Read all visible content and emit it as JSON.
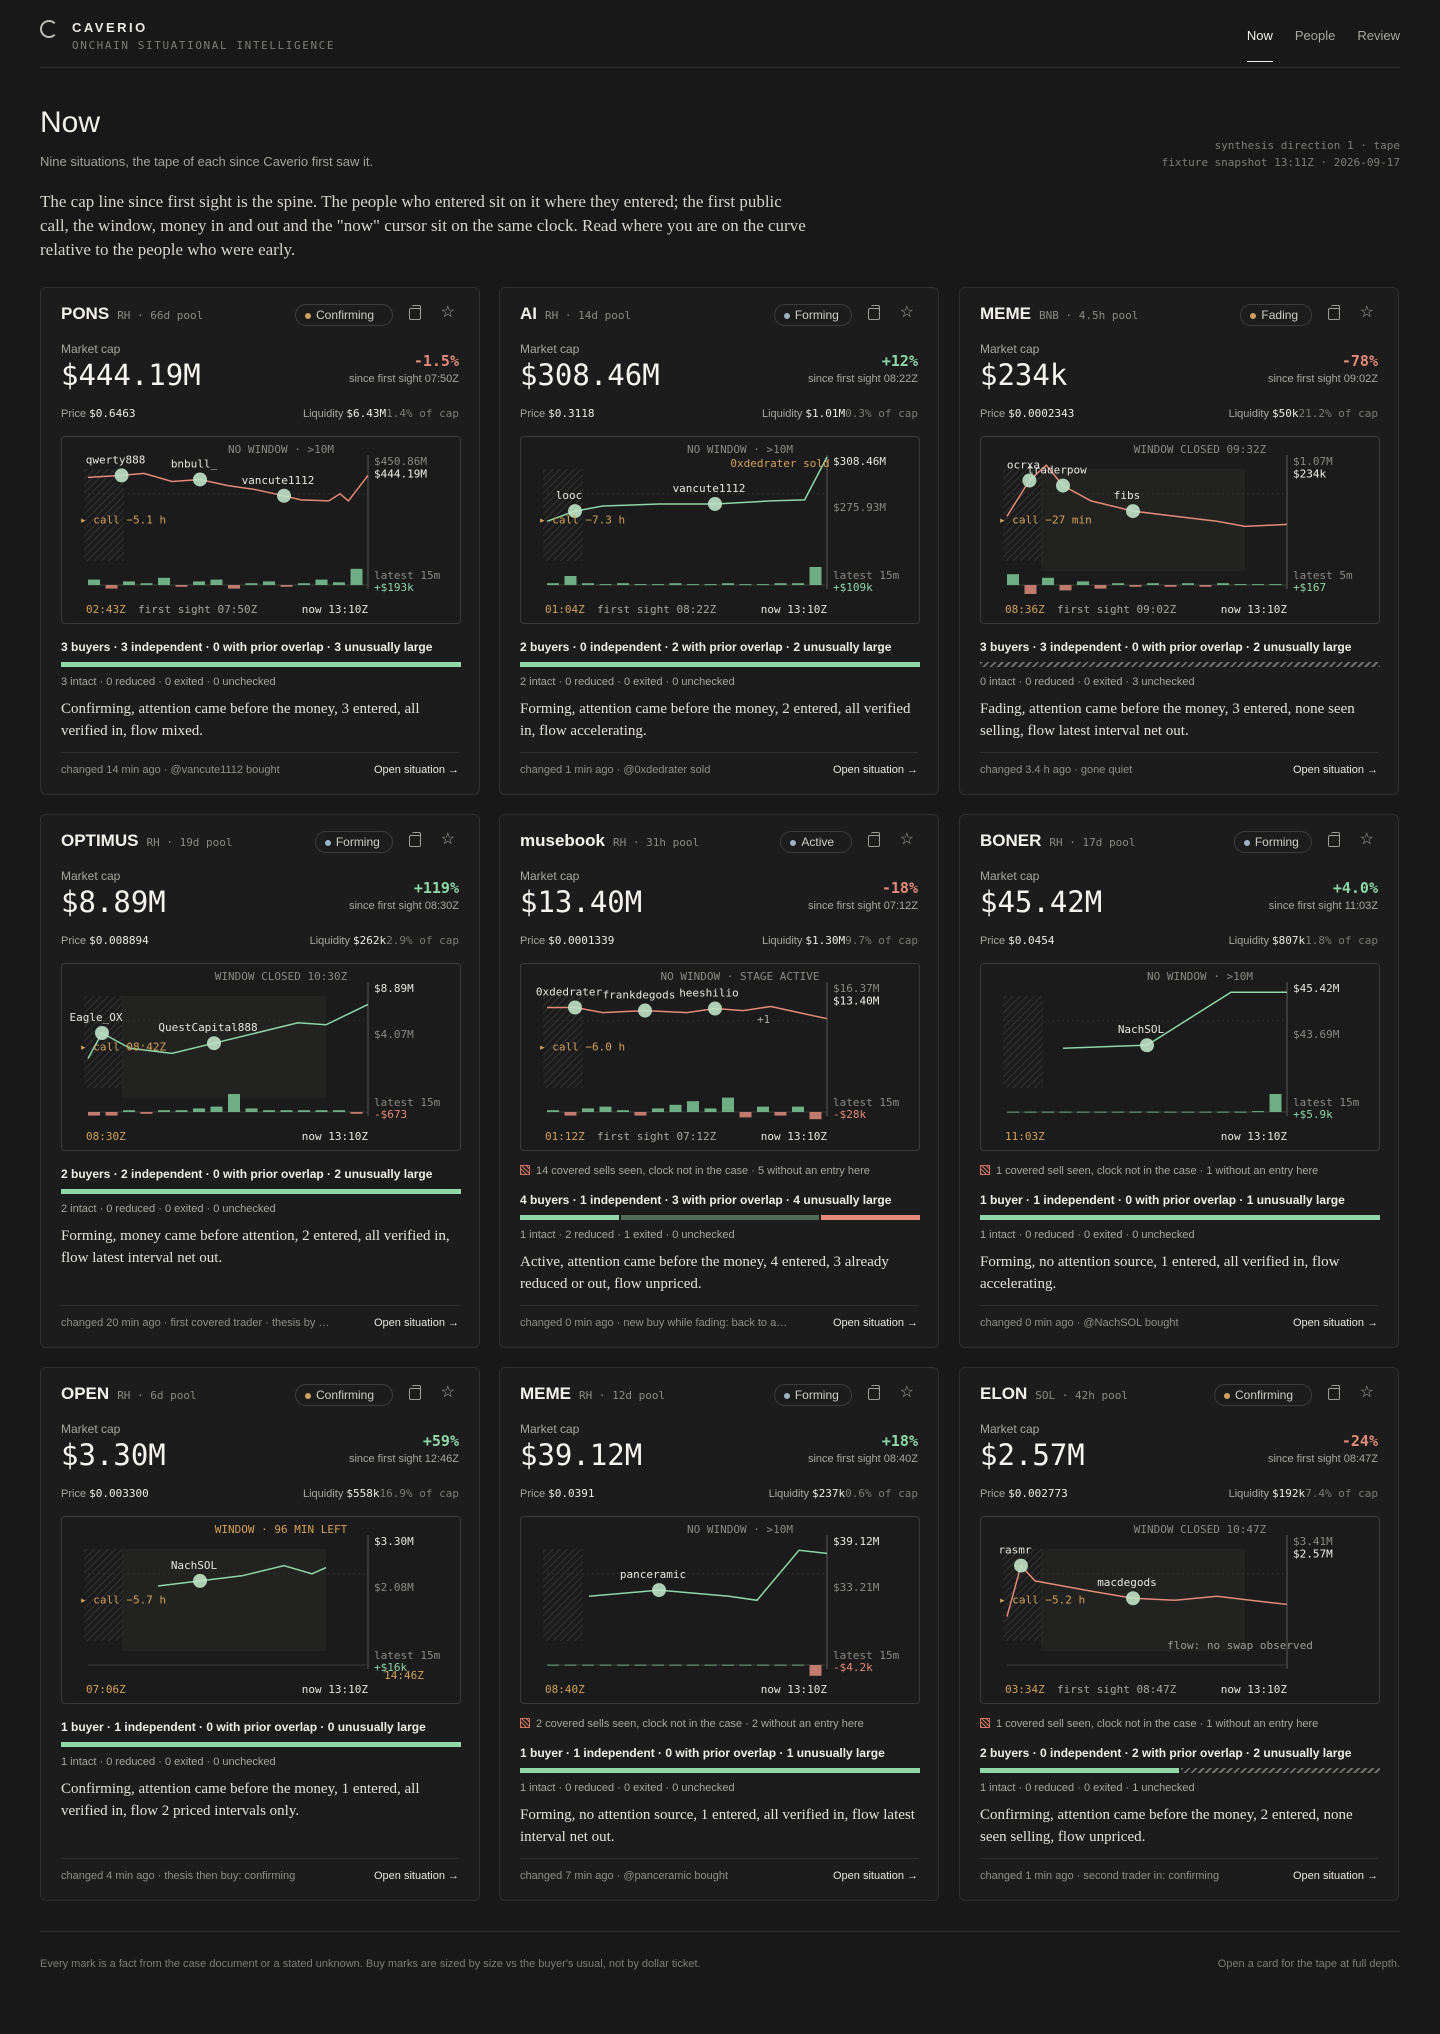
{
  "brand": {
    "name": "CAVERIO",
    "tagline": "ONCHAIN SITUATIONAL INTELLIGENCE"
  },
  "nav": [
    "Now",
    "People",
    "Review"
  ],
  "header": {
    "title": "Now",
    "subtitle": "Nine situations, the tape of each since Caverio first saw it.",
    "synthesis": "synthesis direction 1 · tape",
    "snapshot": "fixture snapshot 13:11Z · 2026-09-17",
    "intro": "The cap line since first sight is the spine. The people who entered sit on it where they entered; the first public call, the window, money in and out and the \"now\" cursor sit on the same clock. Read where you are on the curve relative to the people who were early."
  },
  "labels": {
    "market_cap": "Market cap",
    "price": "Price",
    "liquidity": "Liquidity",
    "open": "Open situation →"
  },
  "colors": {
    "green": "#8fd6a8",
    "red": "#e48a7a",
    "amber": "#d2a15b",
    "accent": "#bfe3c6"
  },
  "cards": [
    {
      "ticker": "PONS",
      "chain": "RH · 66d pool",
      "status": "Confirming",
      "status_color": "#d2a15b",
      "mcap": "$444.19M",
      "change": "-1.5%",
      "dir": "down",
      "since": "since first sight 07:50Z",
      "price": "$0.6463",
      "liquidity": "$6.43M",
      "liq_pct": "1.4% of cap",
      "window_label": "NO WINDOW · >10M",
      "window_label2": "",
      "start": "02:43Z",
      "first_sight": "first sight 07:50Z",
      "now": "now 13:10Z",
      "cap_high": "$450.86M",
      "cap_now": "$444.19M",
      "cap_low": "",
      "latest": "latest 15m",
      "latest_val": "+$193k",
      "latest_dir": "up",
      "call": "call −5.1 h",
      "buyers_text": "3 buyers · 3 independent · 0 with prior overlap · 3 unusually large",
      "intact": "3 intact · 0 reduced · 0 exited · 0 unchecked",
      "summary": "Confirming, attention came before the money, 3 entered, all verified in, flow mixed.",
      "changed": "changed 14 min ago · @vancute1112 bought",
      "covered": "",
      "people": [
        "qwerty888",
        "bnbull_",
        "vancute1112"
      ],
      "tape": [
        [
          0,
          0.78
        ],
        [
          0.12,
          0.8
        ],
        [
          0.2,
          0.82
        ],
        [
          0.3,
          0.74
        ],
        [
          0.4,
          0.76
        ],
        [
          0.5,
          0.7
        ],
        [
          0.6,
          0.66
        ],
        [
          0.7,
          0.6
        ],
        [
          0.76,
          0.56
        ],
        [
          0.86,
          0.55
        ],
        [
          0.9,
          0.62
        ],
        [
          0.93,
          0.55
        ],
        [
          1,
          0.8
        ]
      ],
      "flow": [
        0.3,
        -0.2,
        0.2,
        0.1,
        0.4,
        -0.1,
        0.2,
        0.3,
        -0.2,
        0.1,
        0.2,
        -0.1,
        0.1,
        0.3,
        0.15,
        0.9
      ],
      "bars": [
        [
          3,
          "#8fd6a8"
        ]
      ]
    },
    {
      "ticker": "AI",
      "chain": "RH · 14d pool",
      "status": "Forming",
      "status_color": "#9fb3c8",
      "mcap": "$308.46M",
      "change": "+12%",
      "dir": "up",
      "since": "since first sight 08:22Z",
      "price": "$0.3118",
      "liquidity": "$1.01M",
      "liq_pct": "0.3% of cap",
      "window_label": "NO WINDOW · >10M",
      "window_label2": "0xdedrater sold",
      "start": "01:04Z",
      "first_sight": "first sight 08:22Z",
      "now": "now 13:10Z",
      "cap_high": "$308.46M",
      "cap_now": "",
      "cap_low": "$275.93M",
      "latest": "latest 15m",
      "latest_val": "+$109k",
      "latest_dir": "up",
      "call": "call −7.3 h",
      "buyers_text": "2 buyers · 0 independent · 2 with prior overlap · 2 unusually large",
      "intact": "2 intact · 0 reduced · 0 exited · 0 unchecked",
      "summary": "Forming, attention came before the money, 2 entered, all verified in, flow accelerating.",
      "changed": "changed 1 min ago · @0xdedrater sold",
      "covered": "",
      "people": [
        "looc",
        "vancute1112"
      ],
      "tape": [
        [
          0,
          0.35
        ],
        [
          0.1,
          0.45
        ],
        [
          0.2,
          0.5
        ],
        [
          0.4,
          0.52
        ],
        [
          0.6,
          0.52
        ],
        [
          0.8,
          0.55
        ],
        [
          0.92,
          0.56
        ],
        [
          1,
          0.98
        ]
      ],
      "flow": [
        0.1,
        0.5,
        0.1,
        0.05,
        0.1,
        0.05,
        0.05,
        0.1,
        0.05,
        0.05,
        0.1,
        0.05,
        0.05,
        0.1,
        0.1,
        1
      ],
      "bars": [
        [
          2,
          "#8fd6a8"
        ]
      ]
    },
    {
      "ticker": "MEME",
      "chain": "BNB · 4.5h pool",
      "status": "Fading",
      "status_color": "#d2a15b",
      "mcap": "$234k",
      "change": "-78%",
      "dir": "down",
      "since": "since first sight 09:02Z",
      "price": "$0.0002343",
      "liquidity": "$50k",
      "liq_pct": "21.2% of cap",
      "window_label": "WINDOW CLOSED 09:32Z",
      "window_label2": "",
      "start": "08:36Z",
      "first_sight": "first sight 09:02Z",
      "now": "now 13:10Z",
      "cap_high": "$1.07M",
      "cap_now": "$234k",
      "cap_low": "",
      "latest": "latest 5m",
      "latest_val": "+$167",
      "latest_dir": "up",
      "call": "call −27 min",
      "buyers_text": "3 buyers · 3 independent · 0 with prior overlap · 2 unusually large",
      "intact": "0 intact · 0 reduced · 0 exited · 3 unchecked",
      "summary": "Fading, attention came before the money, 3 entered, none seen selling, flow latest interval net out.",
      "changed": "changed 3.4 h ago · gone quiet",
      "covered": "",
      "people": [
        "ocrxa",
        "traderpow",
        "fibs"
      ],
      "tape": [
        [
          0,
          0.4
        ],
        [
          0.08,
          0.75
        ],
        [
          0.14,
          0.9
        ],
        [
          0.2,
          0.7
        ],
        [
          0.3,
          0.55
        ],
        [
          0.45,
          0.45
        ],
        [
          0.6,
          0.4
        ],
        [
          0.75,
          0.35
        ],
        [
          0.85,
          0.3
        ],
        [
          1,
          0.32
        ]
      ],
      "flow": [
        0.6,
        -0.5,
        0.4,
        -0.3,
        0.2,
        -0.2,
        0.1,
        -0.1,
        0.1,
        -0.1,
        0.1,
        -0.1,
        0.1,
        0.05,
        0.05,
        0.05
      ],
      "bars": [
        [
          3,
          "hatch"
        ]
      ]
    },
    {
      "ticker": "OPTIMUS",
      "chain": "RH · 19d pool",
      "status": "Forming",
      "status_color": "#9fb3c8",
      "mcap": "$8.89M",
      "change": "+119%",
      "dir": "up",
      "since": "since first sight 08:30Z",
      "price": "$0.008894",
      "liquidity": "$262k",
      "liq_pct": "2.9% of cap",
      "window_label": "WINDOW CLOSED 10:30Z",
      "window_label2": "",
      "start": "08:30Z",
      "first_sight": "",
      "now": "now 13:10Z",
      "cap_high": "$8.89M",
      "cap_now": "",
      "cap_low": "$4.07M",
      "latest": "latest 15m",
      "latest_val": "-$673",
      "latest_dir": "down",
      "call": "call 08:42Z",
      "buyers_text": "2 buyers · 2 independent · 0 with prior overlap · 2 unusually large",
      "intact": "2 intact · 0 reduced · 0 exited · 0 unchecked",
      "summary": "Forming, money came before attention, 2 entered, all verified in, flow latest interval net out.",
      "changed": "changed 20 min ago · first covered trader · thesis by …",
      "covered": "",
      "people": [
        "Eagle_OX",
        "QuestCapital888"
      ],
      "tape": [
        [
          0,
          0.25
        ],
        [
          0.05,
          0.5
        ],
        [
          0.15,
          0.35
        ],
        [
          0.3,
          0.3
        ],
        [
          0.45,
          0.4
        ],
        [
          0.6,
          0.5
        ],
        [
          0.75,
          0.6
        ],
        [
          0.85,
          0.58
        ],
        [
          1,
          0.78
        ]
      ],
      "flow": [
        -0.2,
        -0.2,
        0.1,
        -0.1,
        0.1,
        0.1,
        0.2,
        0.3,
        1,
        0.2,
        0.1,
        0.1,
        0.1,
        0.1,
        0.1,
        -0.1
      ],
      "bars": [
        [
          2,
          "#8fd6a8"
        ]
      ]
    },
    {
      "ticker": "musebook",
      "chain": "RH · 31h pool",
      "status": "Active",
      "status_color": "#9fb3c8",
      "mcap": "$13.40M",
      "change": "-18%",
      "dir": "down",
      "since": "since first sight 07:12Z",
      "price": "$0.0001339",
      "liquidity": "$1.30M",
      "liq_pct": "9.7% of cap",
      "window_label": "NO WINDOW · STAGE ACTIVE",
      "window_label2": "",
      "start": "01:12Z",
      "first_sight": "first sight 07:12Z",
      "now": "now 13:10Z",
      "cap_high": "$16.37M",
      "cap_now": "$13.40M",
      "cap_low": "",
      "latest": "latest 15m",
      "latest_val": "-$28k",
      "latest_dir": "down",
      "call": "call −6.0 h",
      "buyers_text": "4 buyers · 1 independent · 3 with prior overlap · 4 unusually large",
      "intact": "1 intact · 2 reduced · 1 exited · 0 unchecked",
      "summary": "Active, attention came before the money, 4 entered, 3 already reduced or out, flow unpriced.",
      "changed": "changed 0 min ago · new buy while fading: back to acti…",
      "covered": "14 covered sells seen, clock not in the case · 5 without an entry here",
      "people": [
        "0xdedrater",
        "frankdegods",
        "heeshilio",
        "+1"
      ],
      "tape": [
        [
          0,
          0.75
        ],
        [
          0.1,
          0.75
        ],
        [
          0.2,
          0.7
        ],
        [
          0.35,
          0.72
        ],
        [
          0.5,
          0.7
        ],
        [
          0.6,
          0.74
        ],
        [
          0.7,
          0.72
        ],
        [
          0.8,
          0.76
        ],
        [
          0.9,
          0.7
        ],
        [
          1,
          0.64
        ]
      ],
      "flow": [
        0.1,
        -0.2,
        0.2,
        0.3,
        0.1,
        -0.2,
        0.2,
        0.4,
        0.6,
        0.2,
        0.8,
        -0.3,
        0.3,
        -0.2,
        0.3,
        -0.4
      ],
      "bars": [
        [
          1,
          "#8fd6a8"
        ],
        [
          2,
          "#4f6b55"
        ],
        [
          1,
          "#e48a7a"
        ]
      ]
    },
    {
      "ticker": "BONER",
      "chain": "RH · 17d pool",
      "status": "Forming",
      "status_color": "#9fb3c8",
      "mcap": "$45.42M",
      "change": "+4.0%",
      "dir": "up",
      "since": "since first sight 11:03Z",
      "price": "$0.0454",
      "liquidity": "$807k",
      "liq_pct": "1.8% of cap",
      "window_label": "NO WINDOW · >10M",
      "window_label2": "",
      "start": "11:03Z",
      "first_sight": "",
      "now": "now 13:10Z",
      "cap_high": "$45.42M",
      "cap_now": "",
      "cap_low": "$43.69M",
      "latest": "latest 15m",
      "latest_val": "+$5.9k",
      "latest_dir": "up",
      "call": "",
      "buyers_text": "1 buyer · 1 independent · 0 with prior overlap · 1 unusually large",
      "intact": "1 intact · 0 reduced · 0 exited · 0 unchecked",
      "summary": "Forming, no attention source, 1 entered, all verified in, flow accelerating.",
      "changed": "changed 0 min ago · @NachSOL bought",
      "covered": "1 covered sell seen, clock not in the case · 1 without an entry here",
      "people": [
        "NachSOL"
      ],
      "tape": [
        [
          0.2,
          0.35
        ],
        [
          0.5,
          0.38
        ],
        [
          0.8,
          0.9
        ],
        [
          1,
          0.9
        ]
      ],
      "flow": [
        0.02,
        0.02,
        0.02,
        0.02,
        0.02,
        0.02,
        0.02,
        0.02,
        0.02,
        0.02,
        0.02,
        0.02,
        0.02,
        0.02,
        0.05,
        1
      ],
      "bars": [
        [
          1,
          "#8fd6a8"
        ]
      ]
    },
    {
      "ticker": "OPEN",
      "chain": "RH · 6d pool",
      "status": "Confirming",
      "status_color": "#d2a15b",
      "mcap": "$3.30M",
      "change": "+59%",
      "dir": "up",
      "since": "since first sight 12:46Z",
      "price": "$0.003300",
      "liquidity": "$558k",
      "liq_pct": "16.9% of cap",
      "window_label": "WINDOW · 96 MIN LEFT",
      "window_label2": "14:46Z",
      "start": "07:06Z",
      "first_sight": "",
      "now": "now 13:10Z",
      "cap_high": "$3.30M",
      "cap_now": "",
      "cap_low": "$2.08M",
      "latest": "latest 15m",
      "latest_val": "+$16k",
      "latest_dir": "up",
      "call": "call −5.7 h",
      "buyers_text": "1 buyer · 1 independent · 0 with prior overlap · 0 unusually large",
      "intact": "1 intact · 0 reduced · 0 exited · 0 unchecked",
      "summary": "Confirming, attention came before the money, 1 entered, all verified in, flow 2 priced intervals only.",
      "changed": "changed 4 min ago · thesis then buy: confirming",
      "covered": "",
      "people": [
        "NachSOL"
      ],
      "tape": [
        [
          0.25,
          0.5
        ],
        [
          0.4,
          0.55
        ],
        [
          0.55,
          0.6
        ],
        [
          0.7,
          0.7
        ],
        [
          0.8,
          0.62
        ],
        [
          0.85,
          0.68
        ]
      ],
      "flow": [],
      "bars": [
        [
          1,
          "#8fd6a8"
        ]
      ]
    },
    {
      "ticker": "MEME",
      "chain": "RH · 12d pool",
      "status": "Forming",
      "status_color": "#9fb3c8",
      "mcap": "$39.12M",
      "change": "+18%",
      "dir": "up",
      "since": "since first sight 08:40Z",
      "price": "$0.0391",
      "liquidity": "$237k",
      "liq_pct": "0.6% of cap",
      "window_label": "NO WINDOW · >10M",
      "window_label2": "",
      "start": "08:40Z",
      "first_sight": "",
      "now": "now 13:10Z",
      "cap_high": "$39.12M",
      "cap_now": "",
      "cap_low": "$33.21M",
      "latest": "latest 15m",
      "latest_val": "-$4.2k",
      "latest_dir": "down",
      "call": "",
      "buyers_text": "1 buyer · 1 independent · 0 with prior overlap · 1 unusually large",
      "intact": "1 intact · 0 reduced · 0 exited · 0 unchecked",
      "summary": "Forming, no attention source, 1 entered, all verified in, flow latest interval net out.",
      "changed": "changed 7 min ago · @panceramic bought",
      "covered": "2 covered sells seen, clock not in the case · 2 without an entry here",
      "people": [
        "panceramic"
      ],
      "tape": [
        [
          0.15,
          0.4
        ],
        [
          0.4,
          0.46
        ],
        [
          0.65,
          0.4
        ],
        [
          0.75,
          0.36
        ],
        [
          0.9,
          0.85
        ],
        [
          1,
          0.82
        ]
      ],
      "flow": [
        0.02,
        0.02,
        0.02,
        0.02,
        0.02,
        0.02,
        0.02,
        0.02,
        0.02,
        0.02,
        0.02,
        0.02,
        0.02,
        0.02,
        0.02,
        -0.6
      ],
      "bars": [
        [
          1,
          "#8fd6a8"
        ]
      ]
    },
    {
      "ticker": "ELON",
      "chain": "SOL · 42h pool",
      "status": "Confirming",
      "status_color": "#d2a15b",
      "mcap": "$2.57M",
      "change": "-24%",
      "dir": "down",
      "since": "since first sight 08:47Z",
      "price": "$0.002773",
      "liquidity": "$192k",
      "liq_pct": "7.4% of cap",
      "window_label": "WINDOW CLOSED 10:47Z",
      "window_label2": "flow: no swap observed",
      "start": "03:34Z",
      "first_sight": "first sight 08:47Z",
      "now": "now 13:10Z",
      "cap_high": "$3.41M",
      "cap_now": "$2.57M",
      "cap_low": "",
      "latest": "",
      "latest_val": "",
      "latest_dir": "down",
      "call": "call −5.2 h",
      "buyers_text": "2 buyers · 0 independent · 2 with prior overlap · 2 unusually large",
      "intact": "1 intact · 0 reduced · 0 exited · 1 unchecked",
      "summary": "Confirming, attention came before the money, 2 entered, none seen selling, flow unpriced.",
      "changed": "changed 1 min ago · second trader in: confirming",
      "covered": "1 covered sell seen, clock not in the case · 1 without an entry here",
      "people": [
        "rasmr",
        "macdegods"
      ],
      "tape": [
        [
          0,
          0.2
        ],
        [
          0.05,
          0.7
        ],
        [
          0.1,
          0.55
        ],
        [
          0.2,
          0.5
        ],
        [
          0.3,
          0.45
        ],
        [
          0.45,
          0.38
        ],
        [
          0.6,
          0.36
        ],
        [
          0.75,
          0.4
        ],
        [
          0.9,
          0.35
        ],
        [
          1,
          0.32
        ]
      ],
      "flow": [],
      "bars": [
        [
          1,
          "#8fd6a8"
        ],
        [
          1,
          "hatch"
        ]
      ]
    }
  ],
  "footer": {
    "left": "Every mark is a fact from the case document or a stated unknown. Buy marks are sized by size vs the buyer's usual, not by dollar ticket.",
    "right": "Open a card for the tape at full depth."
  }
}
